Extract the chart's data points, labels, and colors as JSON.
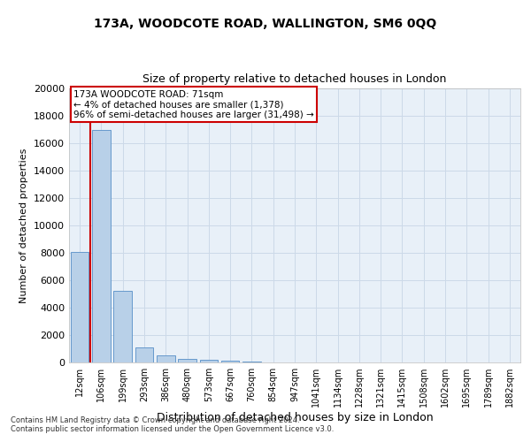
{
  "title": "173A, WOODCOTE ROAD, WALLINGTON, SM6 0QQ",
  "subtitle": "Size of property relative to detached houses in London",
  "xlabel": "Distribution of detached houses by size in London",
  "ylabel": "Number of detached properties",
  "categories": [
    "12sqm",
    "106sqm",
    "199sqm",
    "293sqm",
    "386sqm",
    "480sqm",
    "573sqm",
    "667sqm",
    "760sqm",
    "854sqm",
    "947sqm",
    "1041sqm",
    "1134sqm",
    "1228sqm",
    "1321sqm",
    "1415sqm",
    "1508sqm",
    "1602sqm",
    "1695sqm",
    "1789sqm",
    "1882sqm"
  ],
  "values": [
    8050,
    17000,
    5200,
    1100,
    520,
    280,
    190,
    130,
    60,
    0,
    0,
    0,
    0,
    0,
    0,
    0,
    0,
    0,
    0,
    0,
    0
  ],
  "bar_color": "#b8d0e8",
  "bar_edge_color": "#6699cc",
  "annotation_title": "173A WOODCOTE ROAD: 71sqm",
  "annotation_line1": "← 4% of detached houses are smaller (1,378)",
  "annotation_line2": "96% of semi-detached houses are larger (31,498) →",
  "annotation_box_facecolor": "#ffffff",
  "annotation_box_edgecolor": "#cc0000",
  "vline_color": "#cc0000",
  "vline_x": 0.5,
  "ylim": [
    0,
    20000
  ],
  "yticks": [
    0,
    2000,
    4000,
    6000,
    8000,
    10000,
    12000,
    14000,
    16000,
    18000,
    20000
  ],
  "grid_color": "#ccd9e8",
  "background_color": "#e8f0f8",
  "footer_line1": "Contains HM Land Registry data © Crown copyright and database right 2024.",
  "footer_line2": "Contains public sector information licensed under the Open Government Licence v3.0."
}
